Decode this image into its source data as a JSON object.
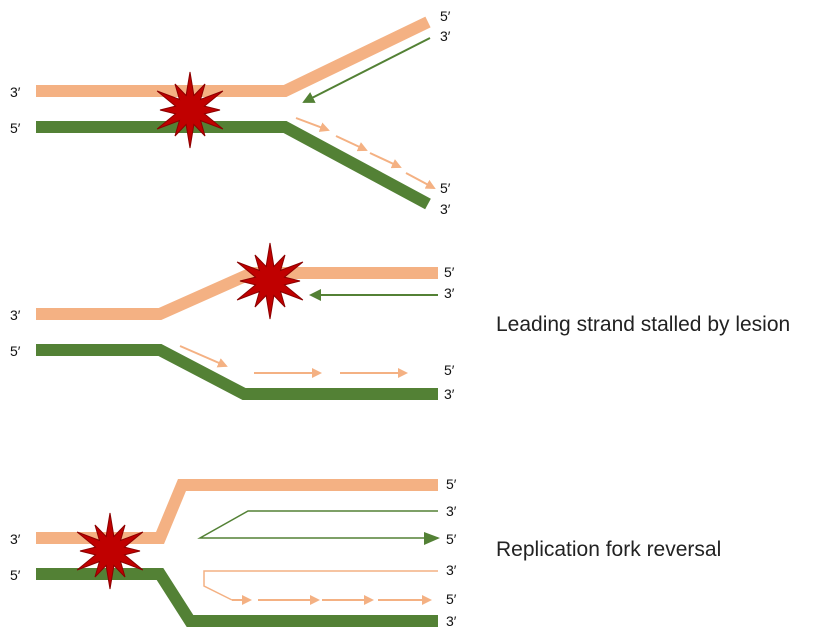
{
  "colors": {
    "parental_top": "#F4B183",
    "parental_bottom": "#538135",
    "lesion": "#C00000",
    "lesion_outline": "#8B0000",
    "label_text": "#111111",
    "caption_text": "#222222"
  },
  "panels": [
    {
      "id": "fork-with-lesion",
      "caption": "",
      "labels": {
        "top_left": "3′",
        "bottom_left": "5′",
        "top_arm_5": "5′",
        "top_arm_3": "3′",
        "bottom_arm_5": "5′",
        "bottom_arm_3": "3′"
      }
    },
    {
      "id": "leading-strand-stalled",
      "caption": "Leading strand stalled by lesion",
      "labels": {
        "top_left": "3′",
        "bottom_left": "5′",
        "top_arm_5": "5′",
        "top_arm_3": "3′",
        "bottom_arm_5": "5′",
        "bottom_arm_3": "3′"
      }
    },
    {
      "id": "fork-reversal",
      "caption": "Replication fork reversal",
      "labels": {
        "top_left": "3′",
        "bottom_left": "5′",
        "top_5": "5′",
        "green_new_3": "3′",
        "green_new_5": "5′",
        "orange_new_3": "3′",
        "orange_new_5": "5′",
        "bottom_3": "3′"
      }
    }
  ]
}
